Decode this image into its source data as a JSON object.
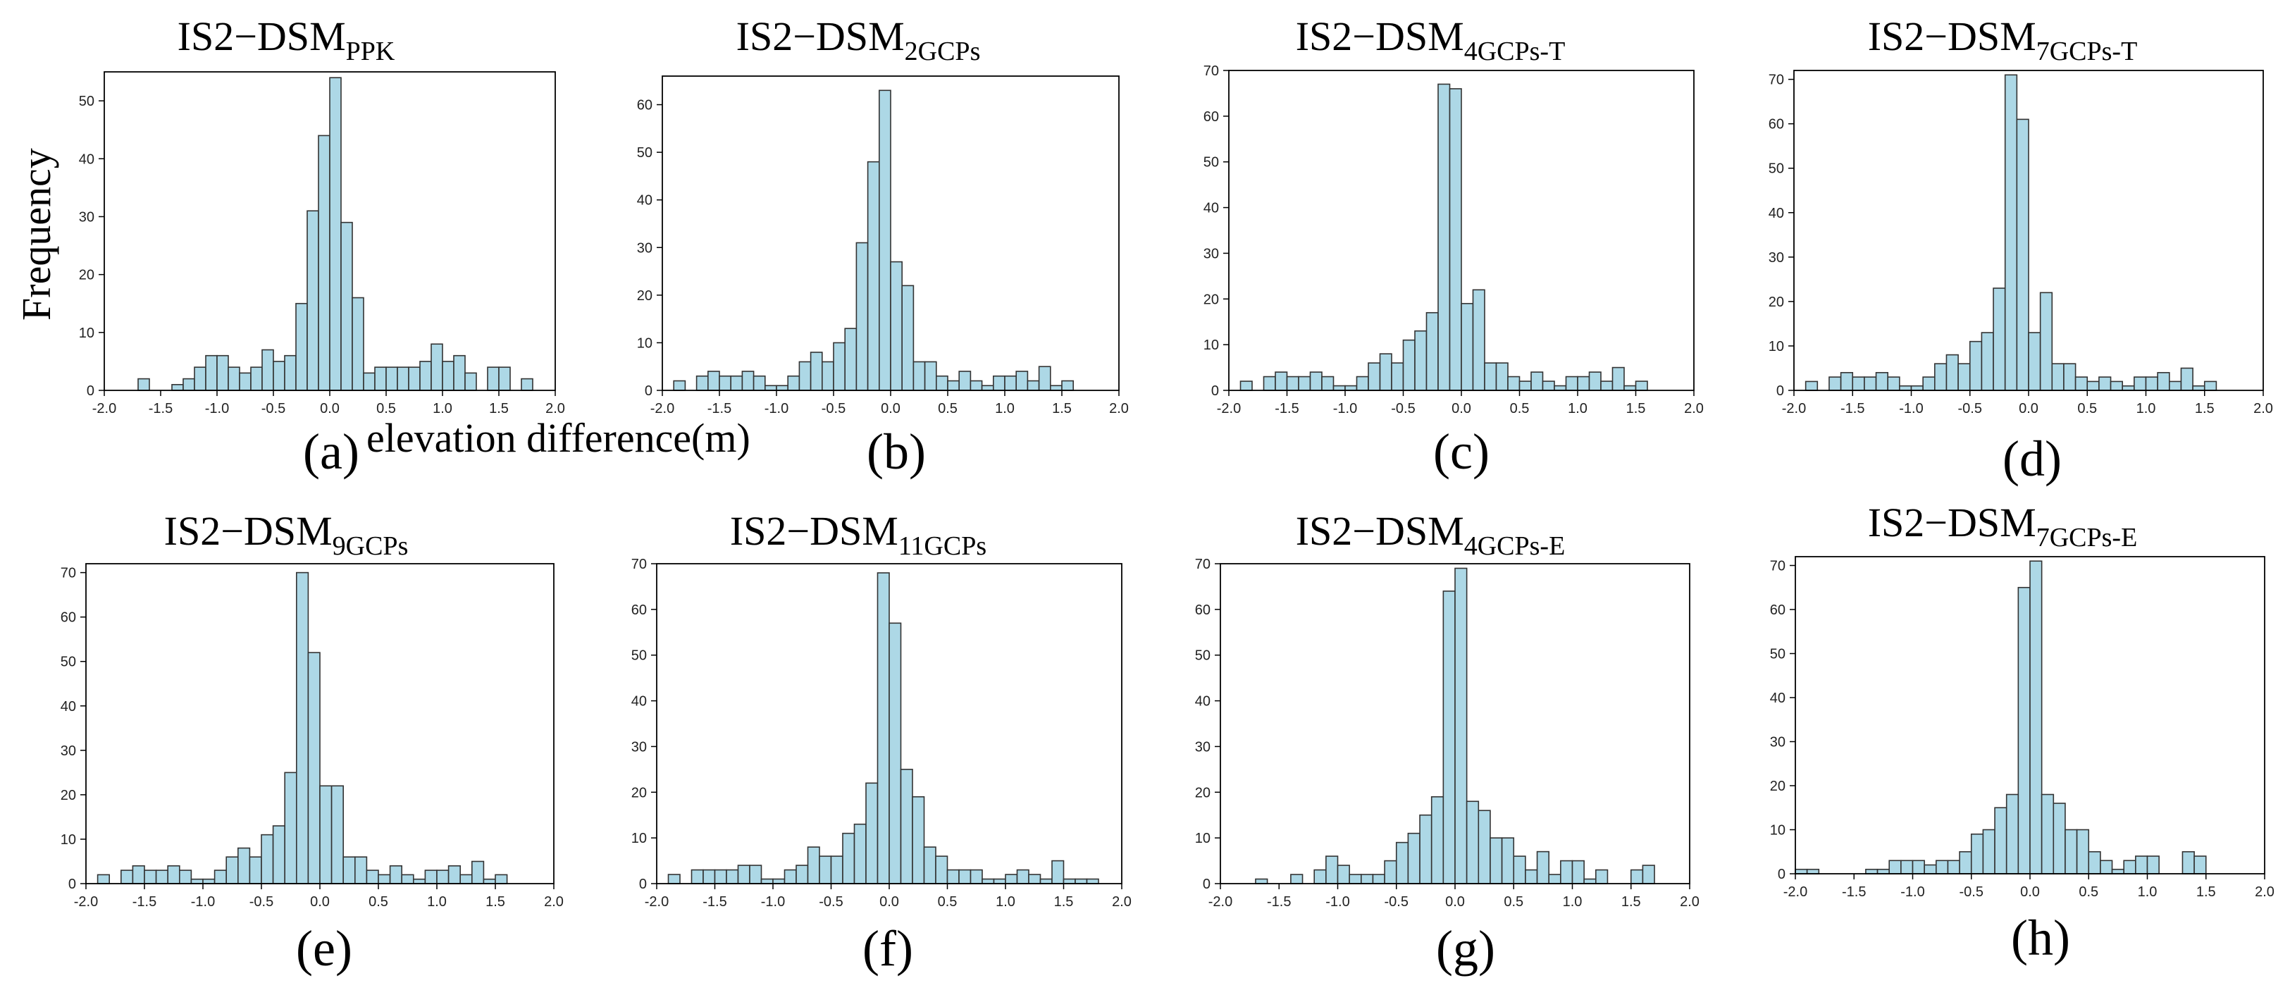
{
  "colors": {
    "bar_fill": "#add8e6",
    "bar_stroke": "#333333",
    "axis": "#000000"
  },
  "figure": {
    "ylabel": "Frequency",
    "xlabel": "elevation difference(m)"
  },
  "chart_data": [
    {
      "type": "bar",
      "panel_label": "(a)",
      "title": {
        "main": "IS2−DSM",
        "sub": "PPK"
      },
      "xlim": [
        -2.0,
        2.0
      ],
      "ylim": [
        0,
        55
      ],
      "xticks": [
        "-2.0",
        "-1.5",
        "-1.0",
        "-0.5",
        "0.0",
        "0.5",
        "1.0",
        "1.5",
        "2.0"
      ],
      "yticks": [
        0,
        10,
        20,
        30,
        40,
        50
      ],
      "bin_start": -1.7,
      "bin_width": 0.1,
      "values": [
        2,
        0,
        0,
        1,
        2,
        4,
        6,
        6,
        4,
        3,
        4,
        7,
        5,
        6,
        15,
        31,
        44,
        54,
        29,
        16,
        3,
        4,
        4,
        4,
        4,
        5,
        8,
        5,
        6,
        3,
        0,
        4,
        4,
        0,
        2
      ]
    },
    {
      "type": "bar",
      "panel_label": "(b)",
      "title": {
        "main": "IS2−DSM",
        "sub": "2GCPs"
      },
      "xlim": [
        -2.0,
        2.0
      ],
      "ylim": [
        0,
        66
      ],
      "xticks": [
        "-2.0",
        "-1.5",
        "-1.0",
        "-0.5",
        "0.0",
        "0.5",
        "1.0",
        "1.5",
        "2.0"
      ],
      "yticks": [
        0,
        10,
        20,
        30,
        40,
        50,
        60
      ],
      "bin_start": -1.9,
      "bin_width": 0.1,
      "values": [
        2,
        0,
        3,
        4,
        3,
        3,
        4,
        3,
        1,
        1,
        3,
        6,
        8,
        6,
        10,
        13,
        31,
        48,
        63,
        27,
        22,
        6,
        6,
        3,
        2,
        4,
        2,
        1,
        3,
        3,
        4,
        2,
        5,
        1,
        2
      ]
    },
    {
      "type": "bar",
      "panel_label": "(c)",
      "title": {
        "main": "IS2−DSM",
        "sub": "4GCPs-T"
      },
      "xlim": [
        -2.0,
        2.0
      ],
      "ylim": [
        0,
        70
      ],
      "xticks": [
        "-2.0",
        "-1.5",
        "-1.0",
        "-0.5",
        "0.0",
        "0.5",
        "1.0",
        "1.5",
        "2.0"
      ],
      "yticks": [
        0,
        10,
        20,
        30,
        40,
        50,
        60,
        70
      ],
      "bin_start": -1.9,
      "bin_width": 0.1,
      "values": [
        2,
        0,
        3,
        4,
        3,
        3,
        4,
        3,
        1,
        1,
        3,
        6,
        8,
        6,
        11,
        13,
        17,
        67,
        66,
        19,
        22,
        6,
        6,
        3,
        2,
        4,
        2,
        1,
        3,
        3,
        4,
        2,
        5,
        1,
        2
      ]
    },
    {
      "type": "bar",
      "panel_label": "(d)",
      "title": {
        "main": "IS2−DSM",
        "sub": "7GCPs-T"
      },
      "xlim": [
        -2.0,
        2.0
      ],
      "ylim": [
        0,
        72
      ],
      "xticks": [
        "-2.0",
        "-1.5",
        "-1.0",
        "-0.5",
        "0.0",
        "0.5",
        "1.0",
        "1.5",
        "2.0"
      ],
      "yticks": [
        0,
        10,
        20,
        30,
        40,
        50,
        60,
        70
      ],
      "bin_start": -1.9,
      "bin_width": 0.1,
      "values": [
        2,
        0,
        3,
        4,
        3,
        3,
        4,
        3,
        1,
        1,
        3,
        6,
        8,
        6,
        11,
        13,
        23,
        71,
        61,
        13,
        22,
        6,
        6,
        3,
        2,
        3,
        2,
        1,
        3,
        3,
        4,
        2,
        5,
        1,
        2
      ]
    },
    {
      "type": "bar",
      "panel_label": "(e)",
      "title": {
        "main": "IS2−DSM",
        "sub": "9GCPs"
      },
      "xlim": [
        -2.0,
        2.0
      ],
      "ylim": [
        0,
        72
      ],
      "xticks": [
        "-2.0",
        "-1.5",
        "-1.0",
        "-0.5",
        "0.0",
        "0.5",
        "1.0",
        "1.5",
        "2.0"
      ],
      "yticks": [
        0,
        10,
        20,
        30,
        40,
        50,
        60,
        70
      ],
      "bin_start": -1.9,
      "bin_width": 0.1,
      "values": [
        2,
        0,
        3,
        4,
        3,
        3,
        4,
        3,
        1,
        1,
        3,
        6,
        8,
        6,
        11,
        13,
        25,
        70,
        52,
        22,
        22,
        6,
        6,
        3,
        2,
        4,
        2,
        1,
        3,
        3,
        4,
        2,
        5,
        1,
        2
      ]
    },
    {
      "type": "bar",
      "panel_label": "(f)",
      "title": {
        "main": "IS2−DSM",
        "sub": "11GCPs"
      },
      "xlim": [
        -2.0,
        2.0
      ],
      "ylim": [
        0,
        70
      ],
      "xticks": [
        "-2.0",
        "-1.5",
        "-1.0",
        "-0.5",
        "0.0",
        "0.5",
        "1.0",
        "1.5",
        "2.0"
      ],
      "yticks": [
        0,
        10,
        20,
        30,
        40,
        50,
        60,
        70
      ],
      "bin_start": -1.9,
      "bin_width": 0.1,
      "values": [
        2,
        0,
        3,
        3,
        3,
        3,
        4,
        4,
        1,
        1,
        3,
        4,
        8,
        6,
        6,
        11,
        13,
        22,
        68,
        57,
        25,
        19,
        8,
        6,
        3,
        3,
        3,
        1,
        1,
        2,
        3,
        2,
        1,
        5,
        1,
        1,
        1
      ]
    },
    {
      "type": "bar",
      "panel_label": "(g)",
      "title": {
        "main": "IS2−DSM",
        "sub": "4GCPs-E"
      },
      "xlim": [
        -2.0,
        2.0
      ],
      "ylim": [
        0,
        70
      ],
      "xticks": [
        "-2.0",
        "-1.5",
        "-1.0",
        "-0.5",
        "0.0",
        "0.5",
        "1.0",
        "1.5",
        "2.0"
      ],
      "yticks": [
        0,
        10,
        20,
        30,
        40,
        50,
        60,
        70
      ],
      "bin_start": -1.7,
      "bin_width": 0.1,
      "values": [
        1,
        0,
        0,
        2,
        0,
        3,
        6,
        4,
        2,
        2,
        2,
        5,
        9,
        11,
        15,
        19,
        64,
        69,
        18,
        16,
        10,
        10,
        6,
        3,
        7,
        2,
        5,
        5,
        1,
        3,
        0,
        0,
        3,
        4
      ]
    },
    {
      "type": "bar",
      "panel_label": "(h)",
      "title": {
        "main": "IS2−DSM",
        "sub": "7GCPs-E"
      },
      "xlim": [
        -2.0,
        2.0
      ],
      "ylim": [
        0,
        72
      ],
      "xticks": [
        "-2.0",
        "-1.5",
        "-1.0",
        "-0.5",
        "0.0",
        "0.5",
        "1.0",
        "1.5",
        "2.0"
      ],
      "yticks": [
        0,
        10,
        20,
        30,
        40,
        50,
        60,
        70
      ],
      "bin_start": -2.0,
      "bin_width": 0.1,
      "values": [
        1,
        1,
        0,
        0,
        0,
        0,
        1,
        1,
        3,
        3,
        3,
        2,
        3,
        3,
        5,
        9,
        10,
        15,
        18,
        65,
        71,
        18,
        16,
        10,
        10,
        5,
        3,
        1,
        3,
        4,
        4,
        0,
        0,
        5,
        4
      ]
    }
  ]
}
